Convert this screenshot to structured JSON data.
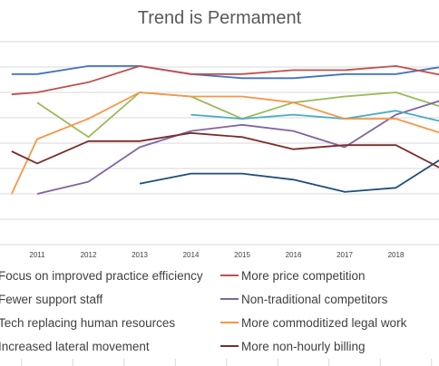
{
  "chart_data": {
    "type": "line",
    "title": "Trend is Permament",
    "xlabel": "",
    "ylabel": "",
    "x": [
      "2011",
      "2012",
      "2013",
      "2014",
      "2015",
      "2016",
      "2017",
      "2018"
    ],
    "x_range": [
      2010.5,
      2019.3
    ],
    "ylim": [
      0,
      100
    ],
    "grid": true,
    "legend_position": "bottom",
    "series": [
      {
        "name": "Focus on improved practice efficiency",
        "color": "#4472C4",
        "points": [
          [
            2010.5,
            84
          ],
          [
            2011,
            84
          ],
          [
            2012,
            88
          ],
          [
            2013,
            88
          ],
          [
            2014,
            84
          ],
          [
            2015,
            82
          ],
          [
            2016,
            82
          ],
          [
            2017,
            84
          ],
          [
            2018,
            84
          ],
          [
            2019,
            88
          ],
          [
            2019.3,
            90
          ]
        ]
      },
      {
        "name": "More price competition",
        "color": "#C0504D",
        "points": [
          [
            2010.5,
            74
          ],
          [
            2011,
            75
          ],
          [
            2012,
            80
          ],
          [
            2013,
            88
          ],
          [
            2014,
            84
          ],
          [
            2015,
            84
          ],
          [
            2016,
            86
          ],
          [
            2017,
            86
          ],
          [
            2018,
            88
          ],
          [
            2019,
            83
          ],
          [
            2019.3,
            80
          ]
        ]
      },
      {
        "name": "Fewer support staff",
        "color": "#9BBB59",
        "points": [
          [
            2011,
            70
          ],
          [
            2012,
            53
          ],
          [
            2013,
            75
          ],
          [
            2014,
            73
          ],
          [
            2015,
            62
          ],
          [
            2016,
            70
          ],
          [
            2017,
            73
          ],
          [
            2018,
            75
          ],
          [
            2019,
            67
          ],
          [
            2019.3,
            66
          ]
        ]
      },
      {
        "name": "Non-traditional competitors",
        "color": "#8064A2",
        "points": [
          [
            2011,
            25
          ],
          [
            2012,
            31
          ],
          [
            2013,
            48
          ],
          [
            2014,
            56
          ],
          [
            2015,
            59
          ],
          [
            2016,
            56
          ],
          [
            2017,
            48
          ],
          [
            2018,
            64
          ],
          [
            2019,
            72
          ],
          [
            2019.3,
            74
          ]
        ]
      },
      {
        "name": "Tech replacing human resources",
        "color": "#4BACC6",
        "points": [
          [
            2014,
            64
          ],
          [
            2015,
            62
          ],
          [
            2016,
            64
          ],
          [
            2017,
            62
          ],
          [
            2018,
            66
          ],
          [
            2019,
            60
          ],
          [
            2019.3,
            59
          ]
        ]
      },
      {
        "name": "More commoditized legal work",
        "color": "#F79646",
        "points": [
          [
            2010.5,
            25
          ],
          [
            2011,
            52
          ],
          [
            2012,
            62
          ],
          [
            2013,
            75
          ],
          [
            2014,
            73
          ],
          [
            2015,
            73
          ],
          [
            2016,
            70
          ],
          [
            2017,
            62
          ],
          [
            2018,
            62
          ],
          [
            2019,
            54
          ],
          [
            2019.3,
            52
          ]
        ]
      },
      {
        "name": "Increased lateral movement",
        "color": "#1F4E79",
        "points": [
          [
            2013,
            30
          ],
          [
            2014,
            35
          ],
          [
            2015,
            35
          ],
          [
            2016,
            32
          ],
          [
            2017,
            26
          ],
          [
            2018,
            28
          ],
          [
            2019,
            44
          ],
          [
            2019.3,
            48
          ]
        ]
      },
      {
        "name": "More non-hourly billing",
        "color": "#7B2C2C",
        "points": [
          [
            2010.5,
            46
          ],
          [
            2011,
            40
          ],
          [
            2012,
            51
          ],
          [
            2013,
            51
          ],
          [
            2014,
            55
          ],
          [
            2015,
            53
          ],
          [
            2016,
            47
          ],
          [
            2017,
            49
          ],
          [
            2018,
            49
          ],
          [
            2019,
            36
          ],
          [
            2019.3,
            34
          ]
        ]
      }
    ]
  }
}
